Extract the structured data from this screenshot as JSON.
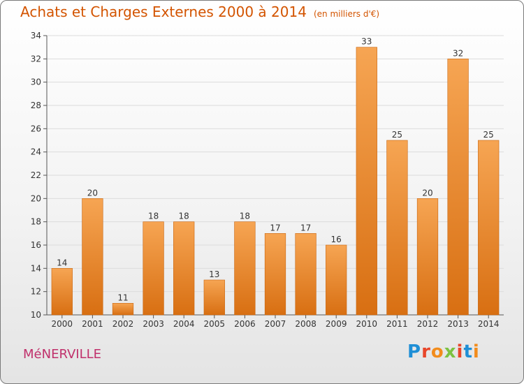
{
  "header": {
    "title": "Achats et Charges Externes 2000 à 2014",
    "subtitle": "(en milliers d'€)"
  },
  "footer": {
    "town": "MéNERVILLE",
    "logo_letters": [
      "P",
      "r",
      "o",
      "x",
      "i",
      "t",
      "i"
    ],
    "logo_colors": [
      "#1f8fd6",
      "#e8462a",
      "#f28c1c",
      "#7cc242",
      "#e8462a",
      "#1f8fd6",
      "#f28c1c"
    ]
  },
  "chart_data": {
    "type": "bar",
    "title": "Achats et Charges Externes 2000 à 2014",
    "subtitle": "(en milliers d'€)",
    "categories": [
      "2000",
      "2001",
      "2002",
      "2003",
      "2004",
      "2005",
      "2006",
      "2007",
      "2008",
      "2009",
      "2010",
      "2011",
      "2012",
      "2013",
      "2014"
    ],
    "values": [
      14,
      20,
      11,
      18,
      18,
      13,
      18,
      17,
      17,
      16,
      33,
      25,
      20,
      32,
      25
    ],
    "ylim": [
      10,
      34
    ],
    "yticks": [
      10,
      12,
      14,
      16,
      18,
      20,
      22,
      24,
      26,
      28,
      30,
      32,
      34
    ],
    "grid": true,
    "legend": "none",
    "xlabel": "",
    "ylabel": "",
    "bar_color_top": "#f6a553",
    "bar_color_bottom": "#d86f12",
    "grid_color": "#dcdcdc"
  }
}
